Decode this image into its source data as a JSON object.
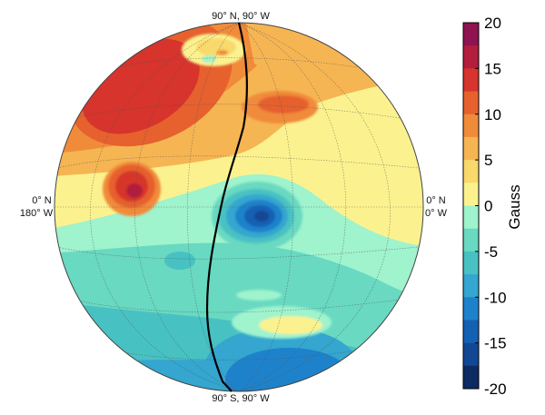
{
  "map": {
    "labels": {
      "north_pole": "90° N, 90° W",
      "south_pole": "90° S, 90° W",
      "left_lat": "0° N",
      "left_lon": "180° W",
      "right_lat": "0° N",
      "right_lon": "0° W"
    },
    "colorbar": {
      "unit": "Gauss",
      "min": -20,
      "max": 20,
      "step": 2.5,
      "ticks": [
        "20",
        "15",
        "10",
        "5",
        "0",
        "-5",
        "-10",
        "-15",
        "-20"
      ],
      "colors": [
        "#8e1350",
        "#b21e3c",
        "#d6342c",
        "#e6612e",
        "#f08b3a",
        "#f6b553",
        "#f9d86c",
        "#fbf28f",
        "#9ff3cd",
        "#69d9c1",
        "#48c1c3",
        "#34a6cf",
        "#1e82cb",
        "#1461b4",
        "#124793",
        "#0e2a62"
      ]
    },
    "track_color": "#000000"
  }
}
